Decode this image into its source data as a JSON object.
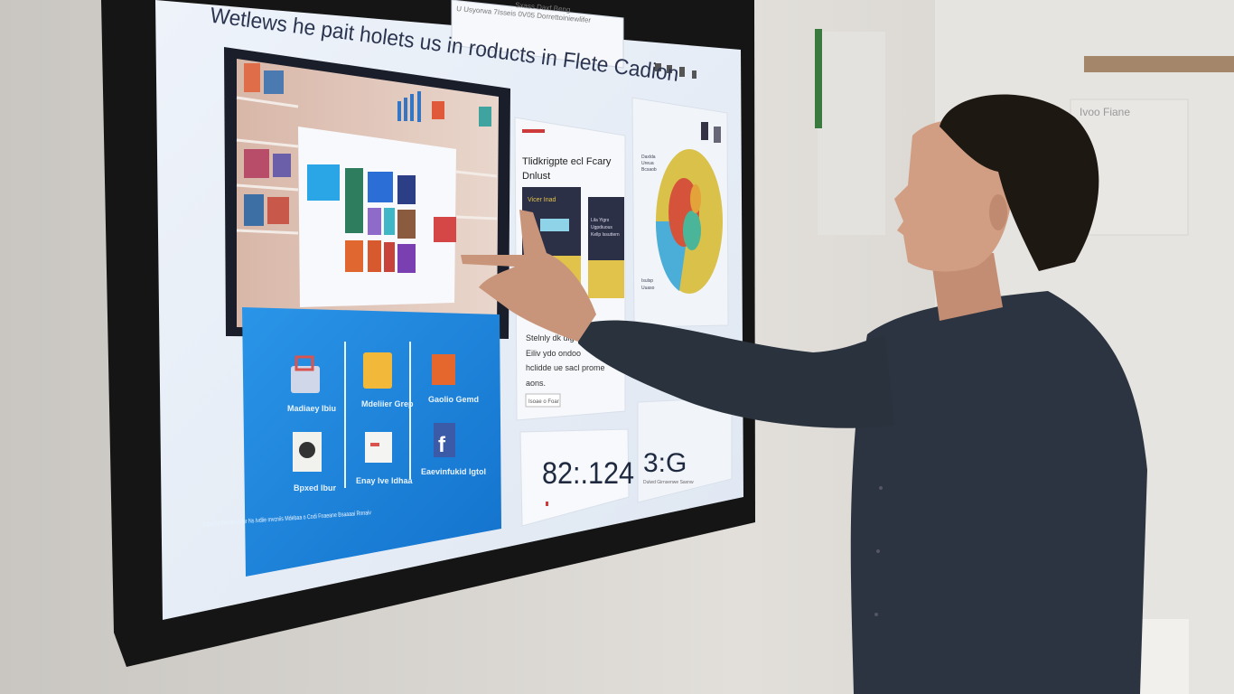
{
  "screen": {
    "headline": "Wetlews he pait holets us in roducts in Flete Cadion",
    "address_bar_text": "U Usyorwa 7Isseis 0V05 Dorrettoiniewlifer",
    "tab_text": "Sxass Daxf Beng",
    "card_title_line1": "Tlidkrigpte ecl Fcary",
    "card_title_line2": "Dnlust",
    "mini_card_label": "Vicer Inad",
    "mini_card2_lines": [
      "Lila Yigrs",
      "Ugpdiuous",
      "Kellp Issuttern"
    ],
    "desc_lines": [
      "Stelnly dk dlg",
      "Eiliv ydo ondoo",
      "hclidde ue sacl prome",
      "aons."
    ],
    "desc_button": "Isoae o Foar",
    "metric1": "82:.124",
    "metric2": "3:G",
    "metric2_caption": "Dulwd  Girnsenwe  Saxnw",
    "app_labels": [
      "Madiaey Ibiu",
      "Mdeliier Grep",
      "Gaolio Gemd",
      "Bpxed Ibur",
      "Enay Ive Idhaa",
      "Eaevinfukid Igtol"
    ],
    "footer_text": "Caronie Gazlle uDlur Ns Ivdlie mvcniis Mdebaa o Codi Fnaeane Bsaaaai Rnnaiv",
    "chart_legend": [
      "Daxlda",
      "Ureua",
      "Bcsaob",
      "Isulsp",
      "Uuaso"
    ]
  },
  "poster_text": "Ivoo Fiane",
  "colors": {
    "wall": "#d9d6d1",
    "bezel": "#151515",
    "screen_bg": "#e7eef7",
    "tile_blue": "#1a86e0",
    "shirt": "#2b3440",
    "pie_yellow": "#d9c14a",
    "pie_blue": "#4aaed8",
    "pie_red": "#d5533a",
    "pie_teal": "#4bb59a",
    "accent_red": "#cc3a3a"
  },
  "icons": [
    "shopping-bag-icon",
    "folder-icon",
    "tile-icon",
    "camera-icon",
    "message-icon",
    "facebook-icon"
  ]
}
